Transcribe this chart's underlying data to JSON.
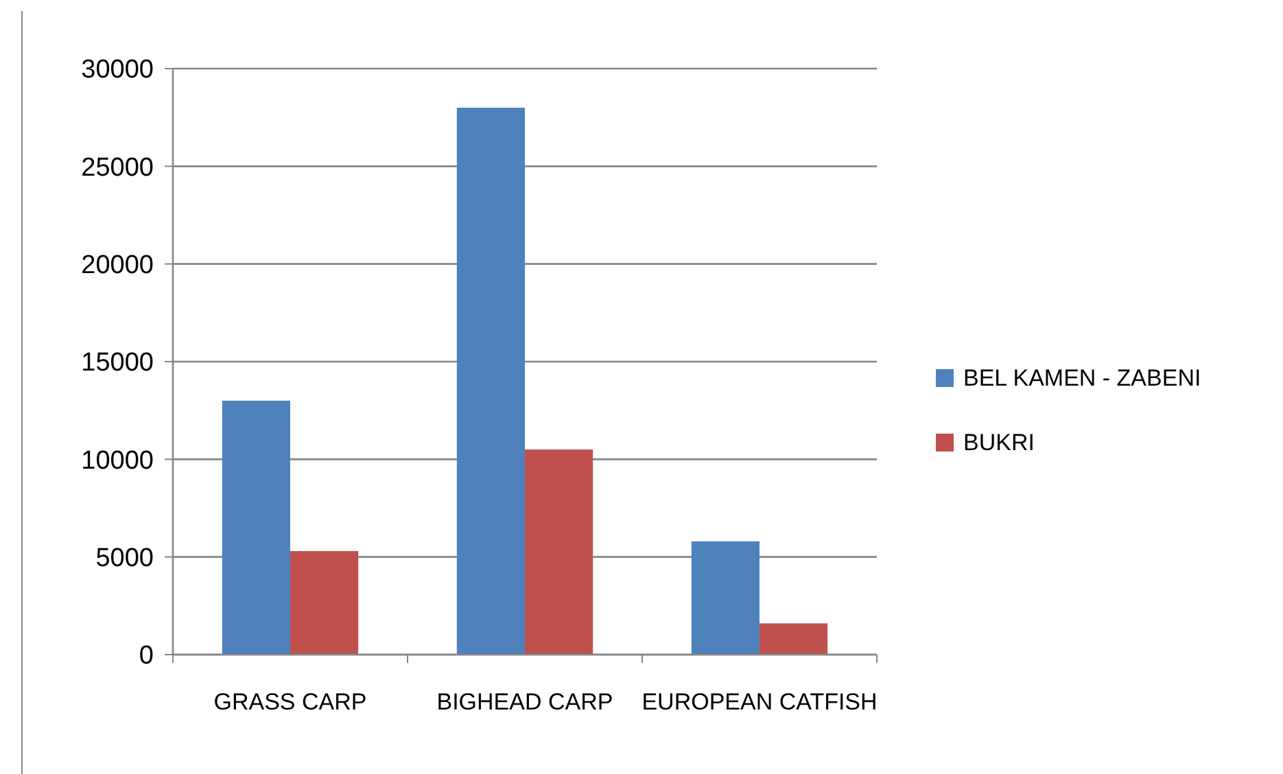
{
  "chart_data": {
    "type": "bar",
    "categories": [
      "GRASS CARP",
      "BIGHEAD CARP",
      "EUROPEAN CATFISH"
    ],
    "series": [
      {
        "name": "BEL KAMEN - ZABENI",
        "color": "#4f81bd",
        "values": [
          13000,
          28000,
          5800
        ]
      },
      {
        "name": "BUKRI",
        "color": "#c0504d",
        "values": [
          5300,
          10500,
          1600
        ]
      }
    ],
    "ylim": [
      0,
      30000
    ],
    "yticks": [
      0,
      5000,
      10000,
      15000,
      20000,
      25000,
      30000
    ],
    "grid": "y",
    "legend": "right"
  }
}
